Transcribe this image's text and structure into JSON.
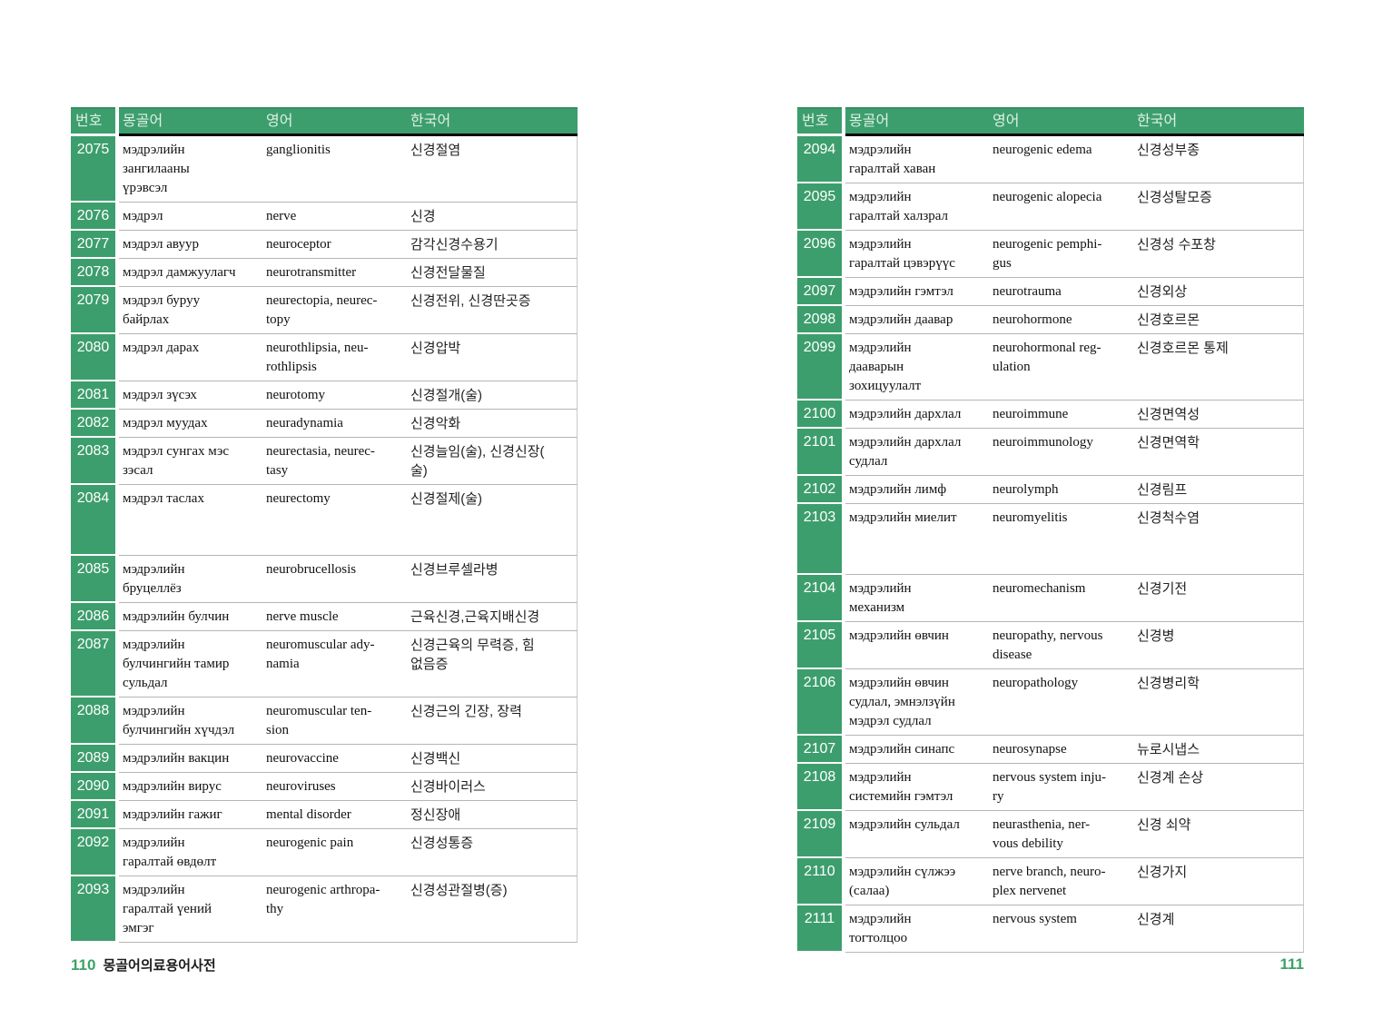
{
  "accent_green": "#3d9e6d",
  "pages": [
    {
      "footer": {
        "page_number": "110",
        "book_title": "몽골어의료용어사전"
      },
      "table": {
        "headers": {
          "no": "번호",
          "mongolian": "몽골어",
          "english": "영어",
          "korean": "한국어"
        },
        "rows": [
          {
            "no": "2075",
            "mn": "мэдрэлийн\nзангилааны\nүрэвсэл",
            "en": "ganglionitis",
            "ko": "신경절염"
          },
          {
            "no": "2076",
            "mn": "мэдрэл",
            "en": "nerve",
            "ko": "신경"
          },
          {
            "no": "2077",
            "mn": "мэдрэл авуур",
            "en": "neuroceptor",
            "ko": "감각신경수용기"
          },
          {
            "no": "2078",
            "mn": "мэдрэл дамжуулагч",
            "en": "neurotransmitter",
            "ko": "신경전달물질"
          },
          {
            "no": "2079",
            "mn": "мэдрэл буруу\nбайрлах",
            "en": "neurectopia, neurec-\ntopy",
            "ko": "신경전위, 신경딴곳증"
          },
          {
            "no": "2080",
            "mn": "мэдрэл дарах",
            "en": "neurothlipsia, neu-\nrothlipsis",
            "ko": "신경압박"
          },
          {
            "no": "2081",
            "mn": "мэдрэл зүсэх",
            "en": "neurotomy",
            "ko": "신경절개(술)"
          },
          {
            "no": "2082",
            "mn": "мэдрэл муудах",
            "en": "neuradynamia",
            "ko": "신경악화"
          },
          {
            "no": "2083",
            "mn": "мэдрэл сунгах мэс\nзэсал",
            "en": "neurectasia, neurec-\ntasy",
            "ko": "신경늘임(술), 신경신장(\n술)"
          },
          {
            "no": "2084",
            "mn": "мэдрэл таслах",
            "en": "neurectomy",
            "ko": "신경절제(술)",
            "tall": true
          },
          {
            "no": "2085",
            "mn": "мэдрэлийн\nбруцеллёз",
            "en": "neurobrucellosis",
            "ko": "신경브루셀라병"
          },
          {
            "no": "2086",
            "mn": "мэдрэлийн булчин",
            "en": "nerve muscle",
            "ko": "근육신경,근육지배신경"
          },
          {
            "no": "2087",
            "mn": "мэдрэлийн\nбулчингийн тамир\nсульдал",
            "en": "neuromuscular ady-\nnamia",
            "ko": "신경근육의 무력증, 힘\n없음증"
          },
          {
            "no": "2088",
            "mn": "мэдрэлийн\nбулчингийн хүчдэл",
            "en": "neuromuscular ten-\nsion",
            "ko": "신경근의 긴장, 장력"
          },
          {
            "no": "2089",
            "mn": "мэдрэлийн вакцин",
            "en": "neurovaccine",
            "ko": "신경백신"
          },
          {
            "no": "2090",
            "mn": "мэдрэлийн вирус",
            "en": "neuroviruses",
            "ko": "신경바이러스"
          },
          {
            "no": "2091",
            "mn": "мэдрэлийн гажиг",
            "en": "mental disorder",
            "ko": "정신장애"
          },
          {
            "no": "2092",
            "mn": "мэдрэлийн\nгаралтай өвдөлт",
            "en": "neurogenic pain",
            "ko": "신경성통증"
          },
          {
            "no": "2093",
            "mn": "мэдрэлийн\nгаралтай үений\nэмгэг",
            "en": "neurogenic arthropa-\nthy",
            "ko": "신경성관절병(증)"
          }
        ]
      }
    },
    {
      "footer": {
        "page_number": "111",
        "book_title": ""
      },
      "table": {
        "headers": {
          "no": "번호",
          "mongolian": "몽골어",
          "english": "영어",
          "korean": "한국어"
        },
        "rows": [
          {
            "no": "2094",
            "mn": "мэдрэлийн\nгаралтай хаван",
            "en": "neurogenic edema",
            "ko": "신경성부종"
          },
          {
            "no": "2095",
            "mn": "мэдрэлийн\nгаралтай халзрал",
            "en": "neurogenic alopecia",
            "ko": "신경성탈모증"
          },
          {
            "no": "2096",
            "mn": "мэдрэлийн\nгаралтай цэвэрүүс",
            "en": "neurogenic pemphi-\ngus",
            "ko": "신경성 수포창"
          },
          {
            "no": "2097",
            "mn": "мэдрэлийн гэмтэл",
            "en": "neurotrauma",
            "ko": "신경외상"
          },
          {
            "no": "2098",
            "mn": "мэдрэлийн даавар",
            "en": "neurohormone",
            "ko": "신경호르몬"
          },
          {
            "no": "2099",
            "mn": "мэдрэлийн\nдааварын\nзохицуулалт",
            "en": "neurohormonal reg-\nulation",
            "ko": "신경호르몬 통제"
          },
          {
            "no": "2100",
            "mn": "мэдрэлийн дархлал",
            "en": "neuroimmune",
            "ko": "신경면역성"
          },
          {
            "no": "2101",
            "mn": "мэдрэлийн дархлал\nсудлал",
            "en": "neuroimmunology",
            "ko": "신경면역학"
          },
          {
            "no": "2102",
            "mn": "мэдрэлийн лимф",
            "en": "neurolymph",
            "ko": "신경림프"
          },
          {
            "no": "2103",
            "mn": "мэдрэлийн миелит",
            "en": "neuromyelitis",
            "ko": "신경척수염",
            "tall": true
          },
          {
            "no": "2104",
            "mn": "мэдрэлийн\nмеханизм",
            "en": "neuromechanism",
            "ko": "신경기전"
          },
          {
            "no": "2105",
            "mn": "мэдрэлийн өвчин",
            "en": "neuropathy, nervous\ndisease",
            "ko": "신경병"
          },
          {
            "no": "2106",
            "mn": "мэдрэлийн өвчин\nсудлал, эмнэлзүйн\nмэдрэл судлал",
            "en": "neuropathology",
            "ko": "신경병리학"
          },
          {
            "no": "2107",
            "mn": "мэдрэлийн синапс",
            "en": "neurosynapse",
            "ko": "뉴로시냅스"
          },
          {
            "no": "2108",
            "mn": "мэдрэлийн\nсистемийн гэмтэл",
            "en": "nervous system inju-\nry",
            "ko": "신경계 손상"
          },
          {
            "no": "2109",
            "mn": "мэдрэлийн сульдал",
            "en": "neurasthenia, ner-\nvous debility",
            "ko": "신경 쇠약"
          },
          {
            "no": "2110",
            "mn": "мэдрэлийн сүлжээ\n(салаа)",
            "en": "nerve branch, neuro-\nplex nervenet",
            "ko": "신경가지"
          },
          {
            "no": "2111",
            "mn": "мэдрэлийн\nтогтолцоо",
            "en": "nervous system",
            "ko": "신경계"
          }
        ]
      }
    }
  ]
}
